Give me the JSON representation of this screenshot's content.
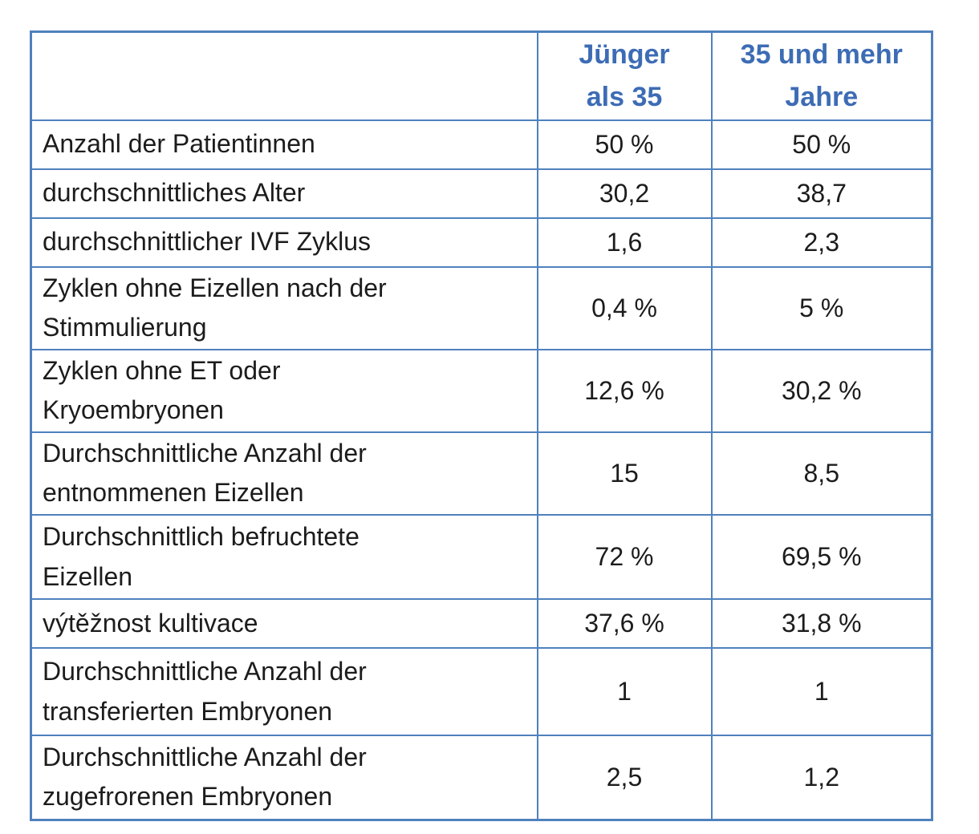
{
  "colors": {
    "border_blue": "#4f81bd",
    "header_text_blue": "#3d6cb5",
    "body_text": "#1c1c1c",
    "background": "#ffffff"
  },
  "table": {
    "title_semantic": "IVF outcome statistics by patient age group",
    "header": {
      "metric": "",
      "young": "Jünger\nals 35",
      "older": "35 und mehr\nJahre"
    },
    "rows": [
      {
        "label": "Anzahl der Patientinnen",
        "young": "50 %",
        "older": "50 %"
      },
      {
        "label": "durchschnittliches Alter",
        "young": "30,2",
        "older": "38,7"
      },
      {
        "label": "durchschnittlicher IVF Zyklus",
        "young": "1,6",
        "older": "2,3"
      },
      {
        "label": "Zyklen ohne Eizellen nach der\nStimmulierung",
        "young": "0,4 %",
        "older": "5 %"
      },
      {
        "label": "Zyklen ohne ET oder\nKryoembryonen",
        "young": "12,6 %",
        "older": "30,2 %"
      },
      {
        "label": "Durchschnittliche Anzahl der\nentnommenen Eizellen",
        "young": "15",
        "older": "8,5"
      },
      {
        "label": "Durchschnittlich befruchtete\nEizellen",
        "young": "72 %",
        "older": "69,5 %"
      },
      {
        "label": "výtěžnost kultivace",
        "young": "37,6 %",
        "older": "31,8 %"
      },
      {
        "label": "Durchschnittliche Anzahl der\ntransferierten Embryonen",
        "young": "1",
        "older": "1"
      },
      {
        "label": "Durchschnittliche Anzahl der\nzugefrorenen Embryonen",
        "young": "2,5",
        "older": "1,2"
      }
    ]
  }
}
